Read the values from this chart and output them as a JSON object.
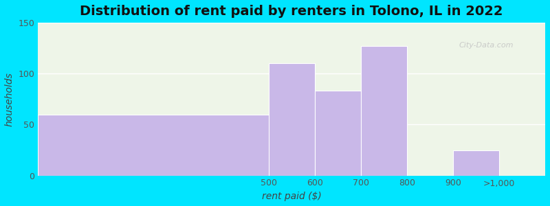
{
  "title": "Distribution of rent paid by renters in Tolono, IL in 2022",
  "xlabel": "rent paid ($)",
  "ylabel": "households",
  "bar_lefts": [
    0,
    5,
    6,
    7,
    9
  ],
  "bar_widths": [
    5.5,
    1,
    1,
    1,
    1
  ],
  "bar_heights": [
    60,
    110,
    83,
    127,
    25
  ],
  "tick_positions": [
    5,
    6,
    7,
    8,
    9,
    10
  ],
  "tick_labels": [
    "500",
    "600",
    "700",
    "800",
    "900",
    ">1,000"
  ],
  "bar_color": "#c9b8e8",
  "ylim": [
    0,
    150
  ],
  "yticks": [
    0,
    50,
    100,
    150
  ],
  "bg_outer": "#00e5ff",
  "bg_plot": "#eef5e8",
  "title_fontsize": 14,
  "axis_label_fontsize": 10,
  "tick_fontsize": 9
}
